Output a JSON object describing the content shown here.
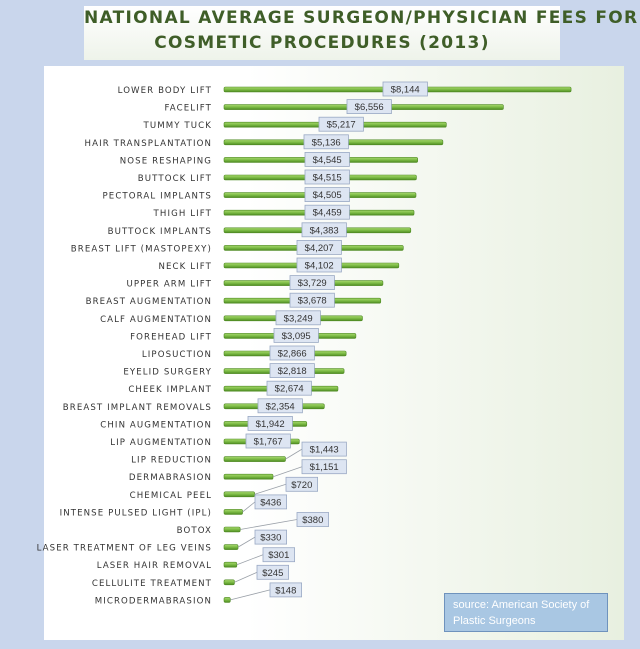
{
  "title": {
    "line1": "NATIONAL AVERAGE SURGEON/PHYSICIAN FEES FOR",
    "line2": "COSMETIC PROCEDURES (2013)"
  },
  "source": "source: American Society of Plastic Surgeons",
  "colors": {
    "bar": "#7cbb45",
    "bar_dark": "#4e8a22",
    "label_bg": "#dde5f2",
    "label_border": "#9aa9c4",
    "text": "#333333"
  },
  "chart_data": {
    "type": "bar",
    "orientation": "horizontal",
    "title": "NATIONAL AVERAGE SURGEON/PHYSICIAN FEES FOR COSMETIC PROCEDURES (2013)",
    "xlabel": "",
    "ylabel": "",
    "xlim": [
      0,
      8400
    ],
    "grid": false,
    "categories": [
      "LOWER BODY LIFT",
      "FACELIFT",
      "TUMMY TUCK",
      "HAIR TRANSPLANTATION",
      "NOSE RESHAPING",
      "BUTTOCK LIFT",
      "PECTORAL IMPLANTS",
      "THIGH LIFT",
      "BUTTOCK IMPLANTS",
      "BREAST LIFT (MASTOPEXY)",
      "NECK LIFT",
      "UPPER ARM LIFT",
      "BREAST AUGMENTATION",
      "CALF AUGMENTATION",
      "FOREHEAD LIFT",
      "LIPOSUCTION",
      "EYELID SURGERY",
      "CHEEK IMPLANT",
      "BREAST IMPLANT REMOVALS",
      "CHIN AUGMENTATION",
      "LIP AUGMENTATION",
      "LIP REDUCTION",
      "DERMABRASION",
      "CHEMICAL PEEL",
      "INTENSE PULSED LIGHT (IPL)",
      "BOTOX",
      "LASER TREATMENT OF LEG VEINS",
      "LASER HAIR REMOVAL",
      "CELLULITE TREATMENT",
      "MICRODERMABRASION"
    ],
    "values": [
      8144,
      6556,
      5217,
      5136,
      4545,
      4515,
      4505,
      4459,
      4383,
      4207,
      4102,
      3729,
      3678,
      3249,
      3095,
      2866,
      2818,
      2674,
      2354,
      1942,
      1767,
      1443,
      1151,
      720,
      436,
      380,
      330,
      301,
      245,
      148
    ],
    "data_labels": [
      "$8,144",
      "$6,556",
      "$5,217",
      "$5,136",
      "$4,545",
      "$4,515",
      "$4,505",
      "$4,459",
      "$4,383",
      "$4,207",
      "$4,102",
      "$3,729",
      "$3,678",
      "$3,249",
      "$3,095",
      "$2,866",
      "$2,818",
      "$2,674",
      "$2,354",
      "$1,942",
      "$1,767",
      "$1,443",
      "$1,151",
      "$720",
      "$436",
      "$380",
      "$330",
      "$301",
      "$245",
      "$148"
    ]
  }
}
